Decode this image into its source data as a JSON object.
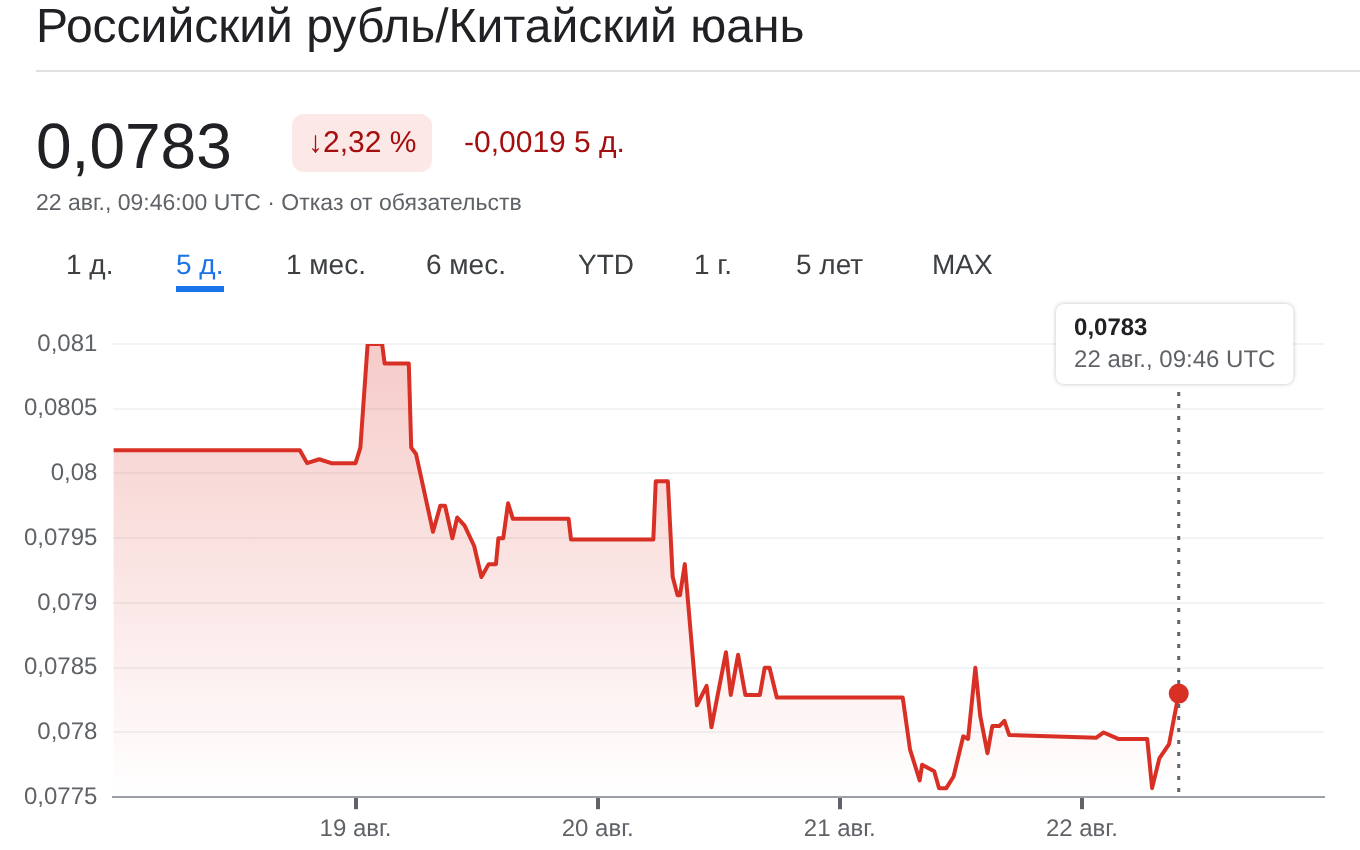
{
  "chart_data": {
    "type": "area",
    "title": "Российский рубль/Китайский юань",
    "annotations": [
      "0,0783",
      "↓2,32 %",
      "-0,0019 5 д.",
      "22 авг., 09:46:00 UTC · Отказ от обязательств",
      "1 д.",
      "5 д.",
      "1 мес.",
      "6 мес.",
      "YTD",
      "1 г.",
      "5 лет",
      "MAX",
      "0,0783"
    ],
    "x": [
      18.0,
      18.77,
      18.8,
      18.85,
      18.9,
      19.0,
      19.02,
      19.05,
      19.11,
      19.12,
      19.22,
      19.23,
      19.25,
      19.32,
      19.35,
      19.37,
      19.4,
      19.42,
      19.45,
      19.49,
      19.52,
      19.55,
      19.58,
      19.59,
      19.61,
      19.63,
      19.65,
      19.88,
      19.89,
      20.23,
      20.24,
      20.29,
      20.31,
      20.33,
      20.34,
      20.36,
      20.41,
      20.45,
      20.47,
      20.53,
      20.55,
      20.58,
      20.61,
      20.67,
      20.69,
      20.71,
      20.74,
      21.26,
      21.29,
      21.33,
      21.34,
      21.39,
      21.41,
      21.44,
      21.47,
      21.51,
      21.53,
      21.56,
      21.58,
      21.61,
      21.63,
      21.66,
      21.68,
      21.7,
      22.06,
      22.09,
      22.15,
      22.27,
      22.29,
      22.32,
      22.36,
      22.4
    ],
    "series": [
      {
        "color": "#d93025",
        "values": [
          0.08018,
          0.08018,
          0.08008,
          0.08011,
          0.08008,
          0.08008,
          0.0802,
          0.081,
          0.081,
          0.08085,
          0.08085,
          0.0802,
          0.08015,
          0.07955,
          0.07975,
          0.07975,
          0.0795,
          0.07966,
          0.0796,
          0.07944,
          0.0792,
          0.0793,
          0.0793,
          0.0795,
          0.0795,
          0.07977,
          0.07965,
          0.07965,
          0.07949,
          0.07949,
          0.07994,
          0.07994,
          0.0792,
          0.07906,
          0.07906,
          0.0793,
          0.07821,
          0.07836,
          0.07804,
          0.07862,
          0.07829,
          0.0786,
          0.07829,
          0.07829,
          0.0785,
          0.0785,
          0.07827,
          0.07827,
          0.07787,
          0.07763,
          0.07775,
          0.0777,
          0.07757,
          0.07757,
          0.07766,
          0.07797,
          0.07795,
          0.0785,
          0.07813,
          0.07784,
          0.07805,
          0.07805,
          0.07809,
          0.07798,
          0.07796,
          0.078,
          0.07795,
          0.07795,
          0.07757,
          0.0778,
          0.07791,
          0.0783
        ]
      }
    ],
    "xlim": [
      18,
      23
    ],
    "xticks": [
      {
        "value": 19,
        "label": "19 авг."
      },
      {
        "value": 20,
        "label": "20 авг."
      },
      {
        "value": 21,
        "label": "21 авг."
      },
      {
        "value": 22,
        "label": "22 авг."
      }
    ],
    "ylim": [
      0.0775,
      0.081
    ],
    "yticks": [
      {
        "value": 0.0775,
        "label": "0,0775"
      },
      {
        "value": 0.078,
        "label": "0,078"
      },
      {
        "value": 0.0785,
        "label": "0,0785"
      },
      {
        "value": 0.079,
        "label": "0,079"
      },
      {
        "value": 0.0795,
        "label": "0,0795"
      },
      {
        "value": 0.08,
        "label": "0,08"
      },
      {
        "value": 0.0805,
        "label": "0,0805"
      },
      {
        "value": 0.081,
        "label": "0,081"
      }
    ],
    "ref_lines": [
      {
        "axis": "x",
        "value": 22.4,
        "label": "22 авг., 09:46 UTC",
        "line_style": "dotted",
        "color": "#5f6368"
      }
    ],
    "grid": "y",
    "legend": false,
    "marker": "none",
    "line_style": "solid"
  }
}
